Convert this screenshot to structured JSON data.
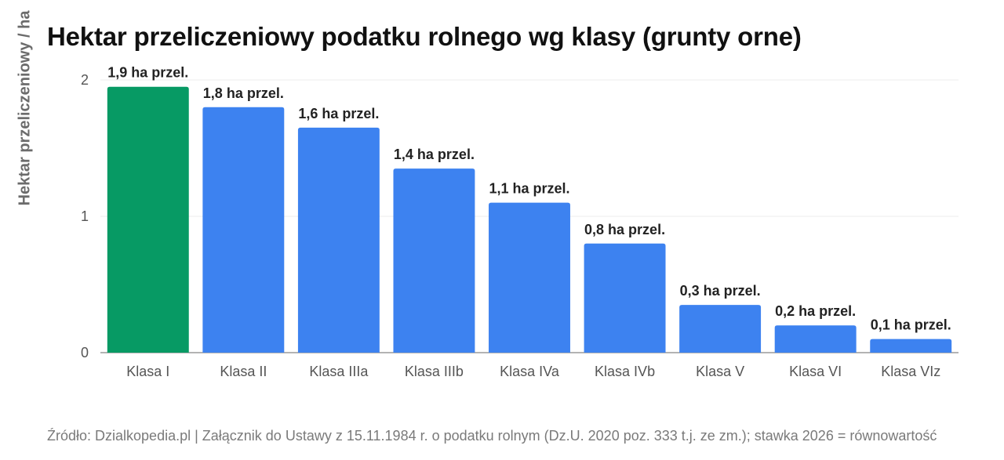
{
  "chart_data": {
    "type": "bar",
    "title": "Hektar przeliczeniowy podatku rolnego wg klasy (grunty orne)",
    "ylabel": "Hektar przeliczeniowy / ha",
    "xlabel": "",
    "ylim": [
      0,
      2
    ],
    "yticks": [
      "0",
      "1",
      "2"
    ],
    "grid": true,
    "categories": [
      "Klasa I",
      "Klasa II",
      "Klasa IIIa",
      "Klasa IIIb",
      "Klasa IVa",
      "Klasa IVb",
      "Klasa V",
      "Klasa VI",
      "Klasa VIz"
    ],
    "values": [
      1.95,
      1.8,
      1.65,
      1.35,
      1.1,
      0.8,
      0.35,
      0.2,
      0.1
    ],
    "data_labels": [
      "1,9 ha przel.",
      "1,8 ha przel.",
      "1,6 ha przel.",
      "1,4 ha przel.",
      "1,1 ha przel.",
      "0,8 ha przel.",
      "0,3 ha przel.",
      "0,2 ha przel.",
      "0,1 ha przel."
    ],
    "highlight_index": 0,
    "colors": {
      "highlight": "#079a64",
      "default": "#3d82f0",
      "grid": "#ececec",
      "axis": "#9a9a9a"
    }
  },
  "source_note": "Źródło: Dzialkopedia.pl | Załącznik do Ustawy z 15.11.1984 r. o podatku rolnym (Dz.U. 2020 poz. 333 t.j. ze zm.); stawka 2026 = równowartość"
}
